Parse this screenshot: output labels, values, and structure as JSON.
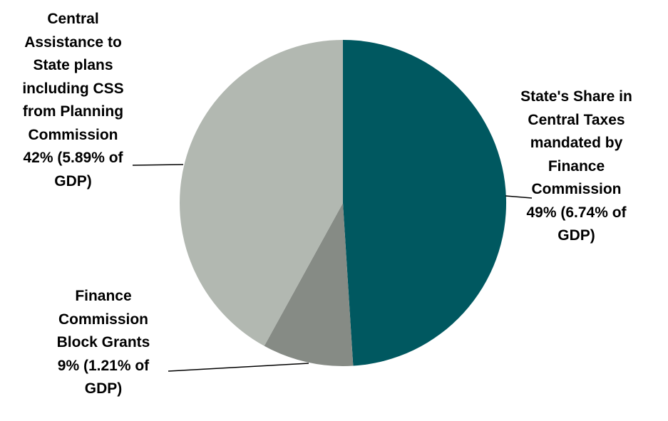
{
  "chart_data": {
    "type": "pie",
    "slices": [
      {
        "name": "State's Share in Central Taxes mandated by Finance Commission",
        "value": 49,
        "gdp_share": 6.74,
        "color": "#005860",
        "label_lines": [
          "State's Share in",
          "Central Taxes",
          "mandated by",
          "Finance",
          "Commission",
          "49% (6.74% of",
          "GDP)"
        ]
      },
      {
        "name": "Finance Commission Block Grants",
        "value": 9,
        "gdp_share": 1.21,
        "color": "#868b85",
        "label_lines": [
          "Finance",
          "Commission",
          "Block Grants",
          "9% (1.21% of",
          "GDP)"
        ]
      },
      {
        "name": "Central Assistance to State plans including CSS from Planning Commission",
        "value": 42,
        "gdp_share": 5.89,
        "color": "#b2b8b1",
        "label_lines": [
          "Central",
          "Assistance to",
          "State plans",
          "including CSS",
          "from Planning",
          "Commission",
          "42% (5.89% of",
          "GDP)"
        ]
      }
    ],
    "start": "12 o'clock",
    "direction": "clockwise",
    "legend": "none (data labels with leader lines)"
  }
}
